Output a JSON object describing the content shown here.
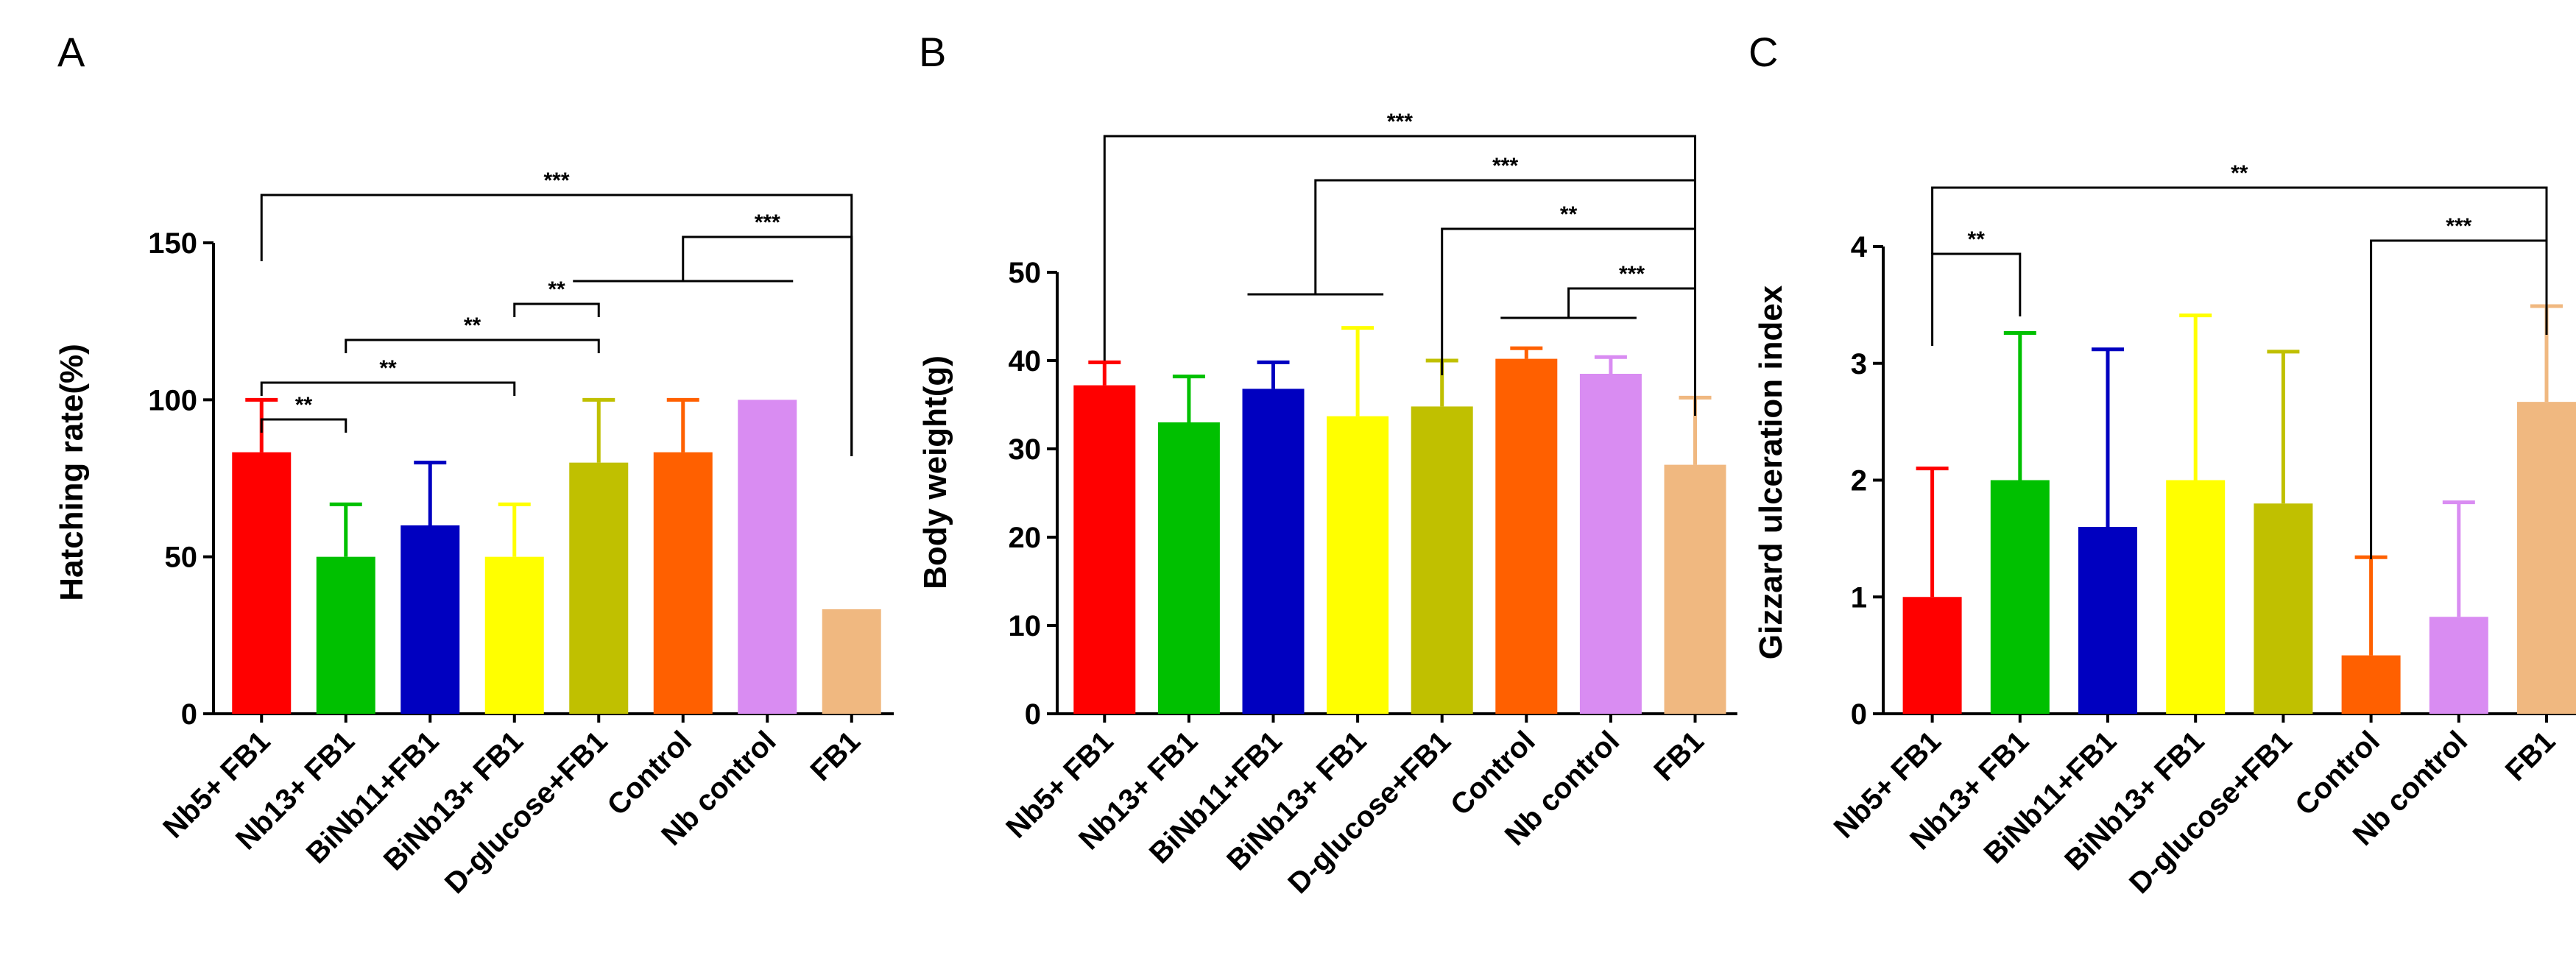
{
  "chart_data": [
    {
      "type": "bar",
      "panel": "A",
      "ylabel": "Hatching rate(%)",
      "xlabel": "",
      "ylim": [
        0,
        150
      ],
      "yticks": [
        0,
        50,
        100,
        150
      ],
      "categories": [
        "Nb5+ FB1",
        "Nb13+ FB1",
        "BiNb11+FB1",
        "BiNb13+ FB1",
        "D-glucose+FB1",
        "Control",
        "Nb control",
        "FB1"
      ],
      "values": [
        83.3,
        50,
        60,
        50,
        80,
        83.3,
        100,
        33.3
      ],
      "errors": [
        16.7,
        16.7,
        20,
        16.7,
        20,
        16.7,
        0,
        0
      ],
      "colors": [
        "#ff0000",
        "#00c000",
        "#0000c0",
        "#ffff00",
        "#c0c000",
        "#ff6000",
        "#d98cf2",
        "#f0b880"
      ],
      "annotations": [
        {
          "label": "**",
          "pairs": [
            [
              0,
              1
            ]
          ]
        },
        {
          "label": "**",
          "pairs": [
            [
              0,
              3
            ]
          ]
        },
        {
          "label": "**",
          "pairs": [
            [
              1,
              4
            ]
          ]
        },
        {
          "label": "**",
          "pairs": [
            [
              3,
              4
            ]
          ]
        },
        {
          "label": "***",
          "pairs": [
            [
              4,
              7
            ],
            [
              5,
              7
            ],
            [
              6,
              7
            ]
          ]
        },
        {
          "label": "***",
          "pairs": [
            [
              0,
              7
            ]
          ]
        }
      ]
    },
    {
      "type": "bar",
      "panel": "B",
      "ylabel": "Body weight(g)",
      "xlabel": "",
      "ylim": [
        0,
        50
      ],
      "yticks": [
        0,
        10,
        20,
        30,
        40,
        50
      ],
      "categories": [
        "Nb5+ FB1",
        "Nb13+ FB1",
        "BiNb11+FB1",
        "BiNb13+ FB1",
        "D-glucose+FB1",
        "Control",
        "Nb control",
        "FB1"
      ],
      "values": [
        37.2,
        33,
        36.8,
        33.7,
        34.8,
        40.2,
        38.5,
        28.2
      ],
      "errors": [
        2.6,
        5.2,
        3,
        10,
        5.2,
        1.2,
        1.9,
        7.6
      ],
      "colors": [
        "#ff0000",
        "#00c000",
        "#0000c0",
        "#ffff00",
        "#c0c000",
        "#ff6000",
        "#d98cf2",
        "#f0b880"
      ],
      "annotations": [
        {
          "label": "***",
          "pairs": [
            [
              5,
              7
            ],
            [
              6,
              7
            ]
          ]
        },
        {
          "label": "**",
          "pairs": [
            [
              4,
              7
            ]
          ]
        },
        {
          "label": "***",
          "pairs": [
            [
              2,
              7
            ],
            [
              3,
              7
            ]
          ]
        },
        {
          "label": "***",
          "pairs": [
            [
              0,
              7
            ]
          ]
        }
      ]
    },
    {
      "type": "bar",
      "panel": "C",
      "ylabel": "Gizzard ulceration index",
      "xlabel": "",
      "ylim": [
        0,
        4
      ],
      "yticks": [
        0,
        1,
        2,
        3,
        4
      ],
      "categories": [
        "Nb5+ FB1",
        "Nb13+ FB1",
        "BiNb11+FB1",
        "BiNb13+ FB1",
        "D-glucose+FB1",
        "Control",
        "Nb control",
        "FB1"
      ],
      "values": [
        1,
        2,
        1.6,
        2,
        1.8,
        0.5,
        0.83,
        2.67
      ],
      "errors": [
        1.1,
        1.26,
        1.52,
        1.41,
        1.3,
        0.84,
        0.98,
        0.82
      ],
      "colors": [
        "#ff0000",
        "#00c000",
        "#0000c0",
        "#ffff00",
        "#c0c000",
        "#ff6000",
        "#d98cf2",
        "#f0b880"
      ],
      "annotations": [
        {
          "label": "**",
          "pairs": [
            [
              0,
              1
            ]
          ]
        },
        {
          "label": "***",
          "pairs": [
            [
              5,
              7
            ]
          ]
        },
        {
          "label": "**",
          "pairs": [
            [
              0,
              7
            ]
          ]
        }
      ]
    }
  ]
}
